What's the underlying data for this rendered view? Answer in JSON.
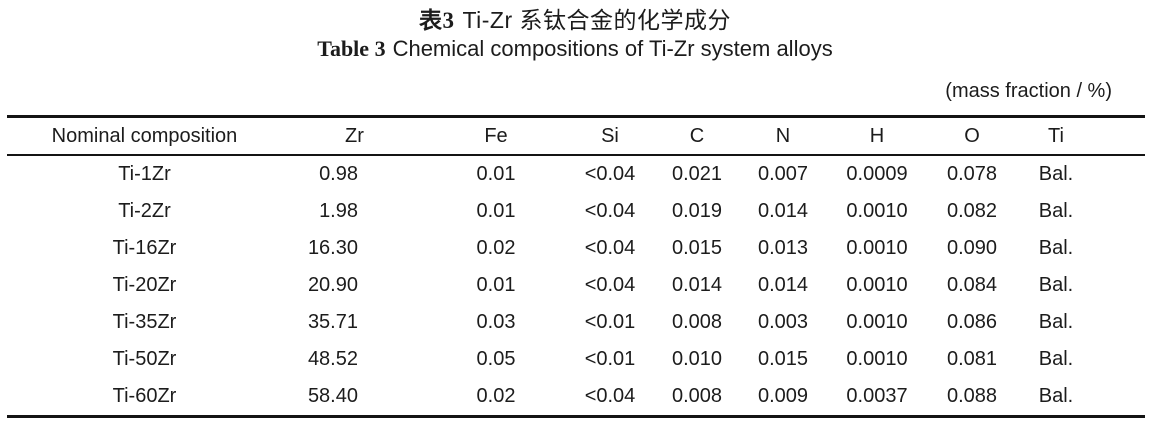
{
  "title_zh": {
    "label": "表3",
    "text": "Ti-Zr 系钛合金的化学成分"
  },
  "title_en": {
    "label": "Table 3",
    "text": "Chemical compositions of Ti-Zr system alloys"
  },
  "unit_note": "(mass fraction / %)",
  "table": {
    "columns": [
      "Nominal composition",
      "Zr",
      "Fe",
      "Si",
      "C",
      "N",
      "H",
      "O",
      "Ti"
    ],
    "rows": [
      [
        "Ti-1Zr",
        "0.98",
        "0.01",
        "<0.04",
        "0.021",
        "0.007",
        "0.0009",
        "0.078",
        "Bal."
      ],
      [
        "Ti-2Zr",
        "1.98",
        "0.01",
        "<0.04",
        "0.019",
        "0.014",
        "0.0010",
        "0.082",
        "Bal."
      ],
      [
        "Ti-16Zr",
        "16.30",
        "0.02",
        "<0.04",
        "0.015",
        "0.013",
        "0.0010",
        "0.090",
        "Bal."
      ],
      [
        "Ti-20Zr",
        "20.90",
        "0.01",
        "<0.04",
        "0.014",
        "0.014",
        "0.0010",
        "0.084",
        "Bal."
      ],
      [
        "Ti-35Zr",
        "35.71",
        "0.03",
        "<0.01",
        "0.008",
        "0.003",
        "0.0010",
        "0.086",
        "Bal."
      ],
      [
        "Ti-50Zr",
        "48.52",
        "0.05",
        "<0.01",
        "0.010",
        "0.015",
        "0.0010",
        "0.081",
        "Bal."
      ],
      [
        "Ti-60Zr",
        "58.40",
        "0.02",
        "<0.04",
        "0.008",
        "0.009",
        "0.0037",
        "0.088",
        "Bal."
      ]
    ]
  },
  "colors": {
    "background": "#ffffff",
    "text": "#1c1c1c",
    "rule": "#141414"
  }
}
